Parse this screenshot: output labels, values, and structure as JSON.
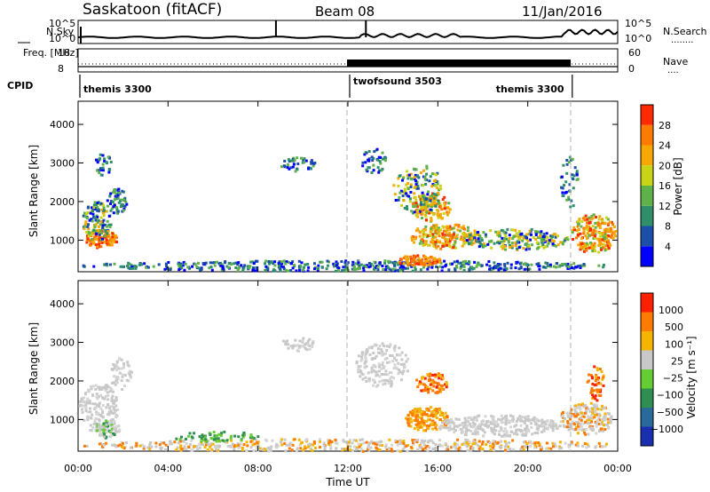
{
  "header": {
    "radar": "Saskatoon (fitACF)",
    "beam": "Beam 08",
    "date": "11/Jan/2016"
  },
  "chart_data": [
    {
      "type": "line",
      "panel": "noise",
      "left_label": "N.Sky",
      "right_label": "N.Search",
      "left_ticks": [
        "10^5",
        "10^0"
      ],
      "right_ticks": [
        "10^5",
        "10^0"
      ],
      "scale": "log"
    },
    {
      "type": "line",
      "panel": "frequency-nave",
      "left_label": "Freq. [MHz]",
      "right_label": "Nave",
      "left_ticks": [
        "18",
        "8"
      ],
      "right_ticks": [
        "60",
        "0"
      ]
    },
    {
      "type": "table",
      "panel": "cpid",
      "label": "CPID",
      "segments": [
        {
          "name": "themis 3300",
          "start_hour": 0,
          "end_hour": 12
        },
        {
          "name": "twofsound 3503",
          "start_hour": 12,
          "end_hour": 21.9
        },
        {
          "name": "themis 3300",
          "start_hour": 21.9,
          "end_hour": 24
        }
      ]
    },
    {
      "type": "heatmap",
      "panel": "power",
      "ylabel": "Slant Range [km]",
      "y_ticks": [
        1000,
        2000,
        3000,
        4000
      ],
      "ylim": [
        180,
        4600
      ],
      "colorbar_label": "Power [dB]",
      "colorbar_ticks": [
        "28",
        "24",
        "20",
        "16",
        "12",
        "8",
        "4"
      ],
      "colors": [
        "#0000ff",
        "#1c4fa8",
        "#2f8f6a",
        "#5fb24a",
        "#c9d417",
        "#f7a800",
        "#ff7a00",
        "#ff2a00"
      ]
    },
    {
      "type": "heatmap",
      "panel": "velocity",
      "ylabel": "Slant Range [km]",
      "y_ticks": [
        1000,
        2000,
        3000,
        4000
      ],
      "ylim": [
        180,
        4600
      ],
      "colorbar_label": "Velocity [m s⁻¹]",
      "colorbar_ticks": [
        "1000",
        "500",
        "100",
        "25",
        "−25",
        "−100",
        "−500",
        "−1000"
      ],
      "colors": [
        "#1a2fb0",
        "#2a6a9a",
        "#2f8f50",
        "#66cc33",
        "#c8c8c8",
        "#f5b400",
        "#ff7a00",
        "#ff2000"
      ]
    }
  ],
  "xaxis": {
    "label": "Time UT",
    "ticks": [
      "00:00",
      "04:00",
      "08:00",
      "12:00",
      "16:00",
      "20:00",
      "00:00"
    ],
    "xlim_hours": [
      0,
      24
    ]
  },
  "footer": {
    "nsearch_dots": "........",
    "nave_dots": "...."
  }
}
